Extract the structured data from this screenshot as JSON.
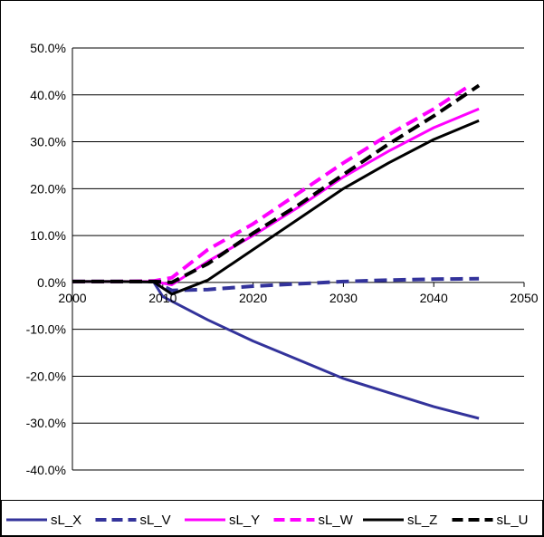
{
  "chart_data": {
    "type": "line",
    "title": "",
    "xlabel": "",
    "ylabel": "",
    "xlim": [
      2000,
      2050
    ],
    "ylim": [
      -40,
      50
    ],
    "x_ticks": [
      2000,
      2010,
      2020,
      2030,
      2040,
      2050
    ],
    "x_tick_labels": [
      "2000",
      "2010",
      "2020",
      "2030",
      "2040",
      "2050"
    ],
    "y_ticks": [
      50,
      40,
      30,
      20,
      10,
      0,
      -10,
      -20,
      -30,
      -40
    ],
    "y_tick_labels": [
      "50.0%",
      "40.0%",
      "30.0%",
      "20.0%",
      "10.0%",
      "0.0%",
      "-10.0%",
      "-20.0%",
      "-30.0%",
      "-40.0%"
    ],
    "grid": true,
    "legend_position": "bottom",
    "series": [
      {
        "name": "sL_X",
        "color": "#33339b",
        "dash": "solid",
        "points": [
          [
            2000,
            0.2
          ],
          [
            2005,
            0.2
          ],
          [
            2009,
            0.1
          ],
          [
            2010,
            -3.0
          ],
          [
            2012,
            -5.0
          ],
          [
            2015,
            -8.0
          ],
          [
            2020,
            -12.5
          ],
          [
            2025,
            -16.5
          ],
          [
            2030,
            -20.5
          ],
          [
            2035,
            -23.5
          ],
          [
            2040,
            -26.5
          ],
          [
            2045,
            -29.0
          ]
        ]
      },
      {
        "name": "sL_V",
        "color": "#33339b",
        "dash": "dash",
        "points": [
          [
            2000,
            0.2
          ],
          [
            2005,
            0.2
          ],
          [
            2009,
            0.2
          ],
          [
            2011,
            -1.7
          ],
          [
            2015,
            -1.5
          ],
          [
            2020,
            -0.8
          ],
          [
            2025,
            -0.3
          ],
          [
            2030,
            0.2
          ],
          [
            2035,
            0.5
          ],
          [
            2040,
            0.7
          ],
          [
            2045,
            0.8
          ]
        ]
      },
      {
        "name": "sL_Y",
        "color": "#ff00ff",
        "dash": "solid",
        "points": [
          [
            2000,
            0.2
          ],
          [
            2005,
            0.2
          ],
          [
            2009,
            0.2
          ],
          [
            2011,
            -0.5
          ],
          [
            2015,
            4.5
          ],
          [
            2020,
            10.0
          ],
          [
            2025,
            16.0
          ],
          [
            2030,
            22.5
          ],
          [
            2035,
            28.0
          ],
          [
            2040,
            33.0
          ],
          [
            2045,
            37.0
          ]
        ]
      },
      {
        "name": "sL_W",
        "color": "#ff00ff",
        "dash": "dash",
        "points": [
          [
            2000,
            0.2
          ],
          [
            2005,
            0.2
          ],
          [
            2009,
            0.3
          ],
          [
            2011,
            1.0
          ],
          [
            2015,
            7.0
          ],
          [
            2020,
            12.5
          ],
          [
            2025,
            19.0
          ],
          [
            2030,
            25.5
          ],
          [
            2035,
            31.5
          ],
          [
            2040,
            37.0
          ],
          [
            2044,
            42.0
          ]
        ]
      },
      {
        "name": "sL_Z",
        "color": "#000000",
        "dash": "solid",
        "points": [
          [
            2000,
            0.2
          ],
          [
            2005,
            0.2
          ],
          [
            2009,
            0.1
          ],
          [
            2011,
            -2.5
          ],
          [
            2015,
            0.5
          ],
          [
            2020,
            7.0
          ],
          [
            2025,
            13.5
          ],
          [
            2030,
            20.0
          ],
          [
            2035,
            25.5
          ],
          [
            2040,
            30.5
          ],
          [
            2045,
            34.5
          ]
        ]
      },
      {
        "name": "sL_U",
        "color": "#000000",
        "dash": "dash",
        "points": [
          [
            2000,
            0.2
          ],
          [
            2005,
            0.2
          ],
          [
            2009,
            0.2
          ],
          [
            2011,
            0.0
          ],
          [
            2015,
            4.0
          ],
          [
            2020,
            10.5
          ],
          [
            2025,
            16.5
          ],
          [
            2030,
            23.0
          ],
          [
            2035,
            29.5
          ],
          [
            2040,
            35.5
          ],
          [
            2045,
            42.0
          ]
        ]
      }
    ]
  }
}
